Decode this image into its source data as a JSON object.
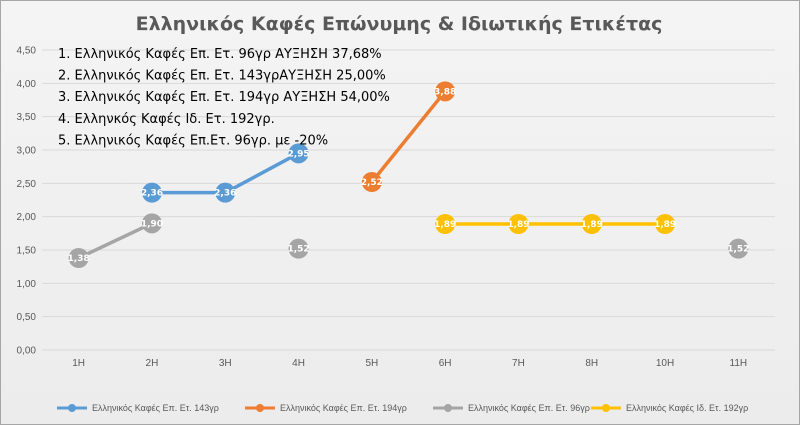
{
  "chart_data": {
    "type": "line",
    "title": "Ελληνικός Καφές Επώνυμης & Ιδιωτικής Ετικέτας",
    "categories": [
      "1H",
      "2H",
      "3H",
      "4H",
      "5H",
      "6H",
      "7H",
      "8H",
      "10H",
      "11H"
    ],
    "ylim": [
      0,
      4.5
    ],
    "yticks": [
      "0,00",
      "0,50",
      "1,00",
      "1,50",
      "2,00",
      "2,50",
      "3,00",
      "3,50",
      "4,00",
      "4,50"
    ],
    "grid": true,
    "legend_position": "bottom",
    "series": [
      {
        "name": "Ελληνικός Καφές Επ. Ετ. 143γρ",
        "color": "#5b9bd5",
        "values": [
          null,
          2.36,
          2.36,
          2.95,
          null,
          null,
          null,
          null,
          null,
          null
        ],
        "labels": [
          null,
          "2,36",
          "2,36",
          "2,95",
          null,
          null,
          null,
          null,
          null,
          null
        ]
      },
      {
        "name": "Ελληνικός Καφές Επ. Ετ. 194γρ",
        "color": "#ed7d31",
        "values": [
          null,
          null,
          null,
          null,
          2.52,
          3.88,
          null,
          null,
          null,
          null
        ],
        "labels": [
          null,
          null,
          null,
          null,
          "2,52",
          "3,88",
          null,
          null,
          null,
          null
        ]
      },
      {
        "name": "Ελληνικός Καφές Επ. Ετ. 96γρ",
        "color": "#a5a5a5",
        "values": [
          1.38,
          1.9,
          null,
          1.52,
          null,
          null,
          null,
          null,
          null,
          1.52
        ],
        "labels": [
          "1,38",
          "1,90",
          null,
          "1,52",
          null,
          null,
          null,
          null,
          null,
          "1,52"
        ]
      },
      {
        "name": "Ελληνικός Καφές Ιδ. Ετ. 192γρ",
        "color": "#ffc000",
        "values": [
          null,
          null,
          null,
          null,
          null,
          1.89,
          1.89,
          1.89,
          1.89,
          null
        ],
        "labels": [
          null,
          null,
          null,
          null,
          null,
          "1,89",
          "1,89",
          "1,89",
          "1,89",
          null
        ]
      }
    ],
    "annotations": [
      "1. Ελληνικός Καφές Επ. Ετ. 96γρ ΑΥΞΗΣΗ 37,68%",
      "2. Ελληνικός Καφές Επ. Ετ. 143γρΑΥΞΗΣΗ 25,00%",
      "3. Ελληνικός Καφές Επ. Ετ. 194γρ ΑΥΞΗΣΗ 54,00%",
      "4. Ελληνκός Καφές Ιδ. Ετ. 192γρ.",
      "5. Ελληνικός Καφές Επ.Ετ. 96γρ. με -20%"
    ]
  }
}
